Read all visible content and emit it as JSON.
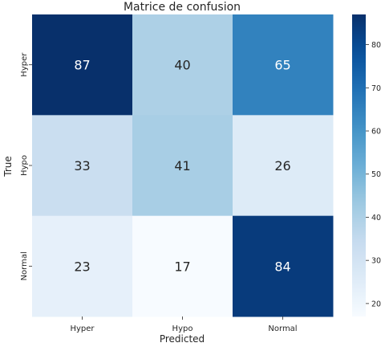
{
  "chart_data": {
    "type": "heatmap",
    "title": "Matrice de confusion",
    "xlabel": "Predicted",
    "ylabel": "True",
    "x_categories": [
      "Hyper",
      "Hypo",
      "Normal"
    ],
    "y_categories": [
      "Hyper",
      "Hypo",
      "Normal"
    ],
    "values": [
      [
        87,
        40,
        65
      ],
      [
        33,
        41,
        26
      ],
      [
        23,
        17,
        84
      ]
    ],
    "colormap": "Blues",
    "color_range": [
      17,
      87
    ],
    "colorbar_ticks": [
      20,
      30,
      40,
      50,
      60,
      70,
      80
    ],
    "annotations": true,
    "grid": false
  }
}
